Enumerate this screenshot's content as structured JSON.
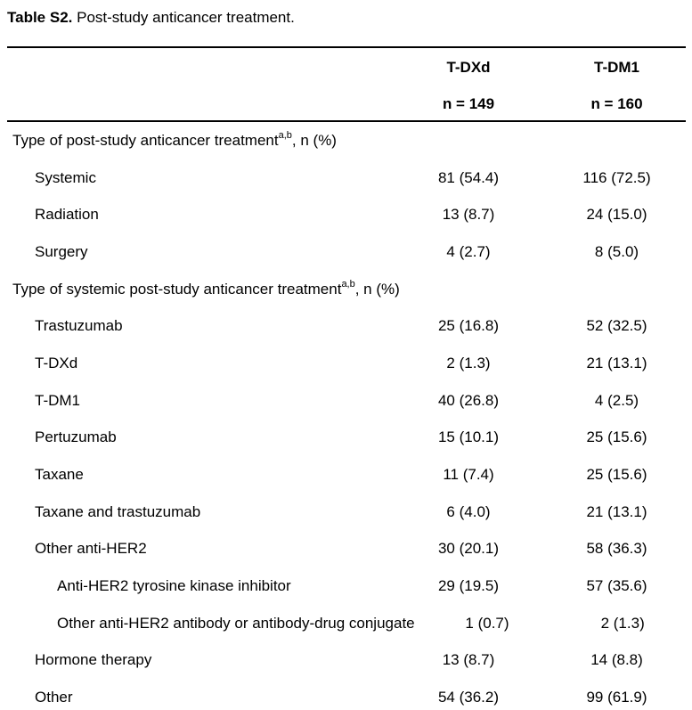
{
  "title": {
    "label_bold": "Table S2.",
    "label_rest": " Post-study anticancer treatment."
  },
  "table": {
    "columns": [
      {
        "name": "T-DXd",
        "n": "n = 149"
      },
      {
        "name": "T-DM1",
        "n": "n = 160"
      }
    ],
    "rows": [
      {
        "label": "Type of post-study anticancer treatment",
        "sup": "a,b",
        "suffix": ", n (%)",
        "indent": 0,
        "col1": "",
        "col2": ""
      },
      {
        "label": "Systemic",
        "indent": 1,
        "col1": "81 (54.4)",
        "col2": "116 (72.5)"
      },
      {
        "label": "Radiation",
        "indent": 1,
        "col1": "13 (8.7)",
        "col2": "24 (15.0)"
      },
      {
        "label": "Surgery",
        "indent": 1,
        "col1": "4 (2.7)",
        "col2": "8 (5.0)"
      },
      {
        "label": "Type of systemic post-study anticancer treatment",
        "sup": "a,b",
        "suffix": ", n (%)",
        "indent": 0,
        "col1": "",
        "col2": ""
      },
      {
        "label": "Trastuzumab",
        "indent": 1,
        "col1": "25 (16.8)",
        "col2": "52 (32.5)"
      },
      {
        "label": "T-DXd",
        "indent": 1,
        "col1": "2 (1.3)",
        "col2": "21 (13.1)"
      },
      {
        "label": "T-DM1",
        "indent": 1,
        "col1": "40 (26.8)",
        "col2": "4 (2.5)"
      },
      {
        "label": "Pertuzumab",
        "indent": 1,
        "col1": "15 (10.1)",
        "col2": "25 (15.6)"
      },
      {
        "label": "Taxane",
        "indent": 1,
        "col1": "11 (7.4)",
        "col2": "25 (15.6)"
      },
      {
        "label": "Taxane and trastuzumab",
        "indent": 1,
        "col1": "6 (4.0)",
        "col2": "21 (13.1)"
      },
      {
        "label": "Other anti-HER2",
        "indent": 1,
        "col1": "30 (20.1)",
        "col2": "58 (36.3)"
      },
      {
        "label": "Anti-HER2 tyrosine kinase inhibitor",
        "indent": 2,
        "col1": "29 (19.5)",
        "col2": "57 (35.6)"
      },
      {
        "label": "Other anti-HER2 antibody or antibody-drug conjugate",
        "indent": 2,
        "col1": "1 (0.7)",
        "col2": "2 (1.3)"
      },
      {
        "label": "Hormone therapy",
        "indent": 1,
        "col1": "13 (8.7)",
        "col2": "14 (8.8)"
      },
      {
        "label": "Other",
        "indent": 1,
        "col1": "54 (36.2)",
        "col2": "99 (61.9)"
      }
    ]
  }
}
